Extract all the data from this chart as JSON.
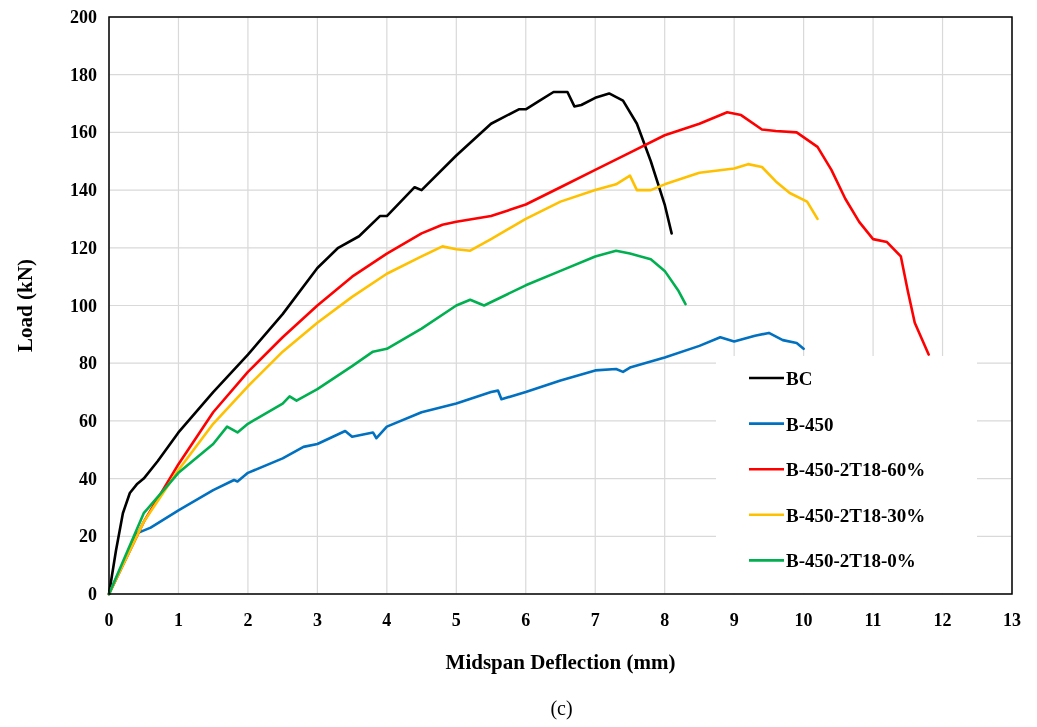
{
  "chart_data": {
    "type": "line",
    "xlabel": "Midspan Deflection (mm)",
    "ylabel": "Load (kN)",
    "annotations": [
      "(c)"
    ],
    "xlim": [
      0,
      13
    ],
    "xticks": [
      0,
      1,
      2,
      3,
      4,
      5,
      6,
      7,
      8,
      9,
      10,
      11,
      12,
      13
    ],
    "ylim": [
      0,
      200
    ],
    "yticks": [
      0,
      20,
      40,
      60,
      80,
      100,
      120,
      140,
      160,
      180,
      200
    ],
    "grid": true,
    "legend": "bottom right",
    "line_style": "solid",
    "marker": "none",
    "series": [
      {
        "name": "BC",
        "color": "#000000",
        "x": [
          0,
          0.1,
          0.2,
          0.3,
          0.4,
          0.5,
          0.7,
          1,
          1.5,
          2,
          2.5,
          3,
          3.3,
          3.6,
          3.9,
          4,
          4.4,
          4.5,
          5,
          5.5,
          5.9,
          6,
          6.2,
          6.4,
          6.6,
          6.7,
          6.8,
          7,
          7.2,
          7.4,
          7.6,
          7.8,
          8,
          8.1
        ],
        "values": [
          0,
          15,
          28,
          35,
          38,
          40,
          46,
          56,
          70,
          83,
          97,
          113,
          120,
          124,
          131,
          131,
          141,
          140,
          152,
          163,
          168,
          168,
          171,
          174,
          174,
          169,
          169.5,
          172,
          173.5,
          171,
          163,
          150,
          135,
          125
        ]
      },
      {
        "name": "B-450",
        "color": "#0070c0",
        "x": [
          0,
          0.4,
          0.6,
          1,
          1.5,
          1.8,
          1.85,
          2,
          2.5,
          2.8,
          3,
          3.4,
          3.5,
          3.8,
          3.85,
          4,
          4.5,
          5,
          5.5,
          5.6,
          5.65,
          6,
          6.5,
          7,
          7.3,
          7.4,
          7.5,
          8,
          8.5,
          8.8,
          9,
          9.3,
          9.5,
          9.7,
          9.9,
          10
        ],
        "values": [
          0,
          21,
          23,
          29,
          36,
          39.5,
          39,
          42,
          47,
          51,
          52,
          56.5,
          54.5,
          56,
          54,
          58,
          63,
          66,
          70,
          70.5,
          67.5,
          70,
          74,
          77.5,
          78,
          77,
          78.5,
          82,
          86,
          89,
          87.5,
          89.5,
          90.5,
          88,
          87,
          85
        ]
      },
      {
        "name": "B-450-2T18-60%",
        "color": "#ff0000",
        "x": [
          0,
          0.5,
          1,
          1.5,
          2,
          2.5,
          3,
          3.5,
          4,
          4.5,
          4.8,
          5,
          5.5,
          6,
          6.5,
          7,
          7.5,
          8,
          8.5,
          8.9,
          9.1,
          9.4,
          9.6,
          9.9,
          10.2,
          10.4,
          10.6,
          10.8,
          11,
          11.2,
          11.4,
          11.5,
          11.6,
          11.8
        ],
        "values": [
          0,
          25,
          45,
          63,
          77,
          89,
          100,
          110,
          118,
          125,
          128,
          129,
          131,
          135,
          141,
          147,
          153,
          159,
          163,
          167,
          166,
          161,
          160.5,
          160,
          155,
          147,
          137,
          129,
          123,
          122,
          117,
          105,
          94,
          83
        ]
      },
      {
        "name": "B-450-2T18-30%",
        "color": "#ffc000",
        "x": [
          0,
          0.5,
          1,
          1.5,
          2,
          2.5,
          3,
          3.5,
          4,
          4.5,
          4.8,
          5,
          5.2,
          5.5,
          6,
          6.5,
          7,
          7.3,
          7.5,
          7.6,
          7.8,
          8,
          8.5,
          9,
          9.2,
          9.4,
          9.6,
          9.8,
          10.05,
          10.2
        ],
        "values": [
          0,
          25,
          43,
          59,
          72,
          84,
          94,
          103,
          111,
          117,
          120.5,
          119.5,
          119,
          123,
          130,
          136,
          140,
          142,
          145,
          140,
          140,
          142,
          146,
          147.5,
          149,
          148,
          143,
          139,
          136,
          130
        ]
      },
      {
        "name": "B-450-2T18-0%",
        "color": "#00b050",
        "x": [
          0,
          0.5,
          1,
          1.5,
          1.7,
          1.85,
          2,
          2.5,
          2.6,
          2.7,
          3,
          3.5,
          3.8,
          4,
          4.5,
          5,
          5.2,
          5.4,
          6,
          6.5,
          7,
          7.3,
          7.5,
          7.8,
          8,
          8.2,
          8.3
        ],
        "values": [
          0,
          28,
          42,
          52,
          58,
          56,
          59,
          66,
          68.5,
          67,
          71,
          79,
          84,
          85,
          92,
          100,
          102,
          100,
          107,
          112,
          117,
          119,
          118,
          116,
          112,
          105,
          100.5
        ]
      }
    ]
  }
}
